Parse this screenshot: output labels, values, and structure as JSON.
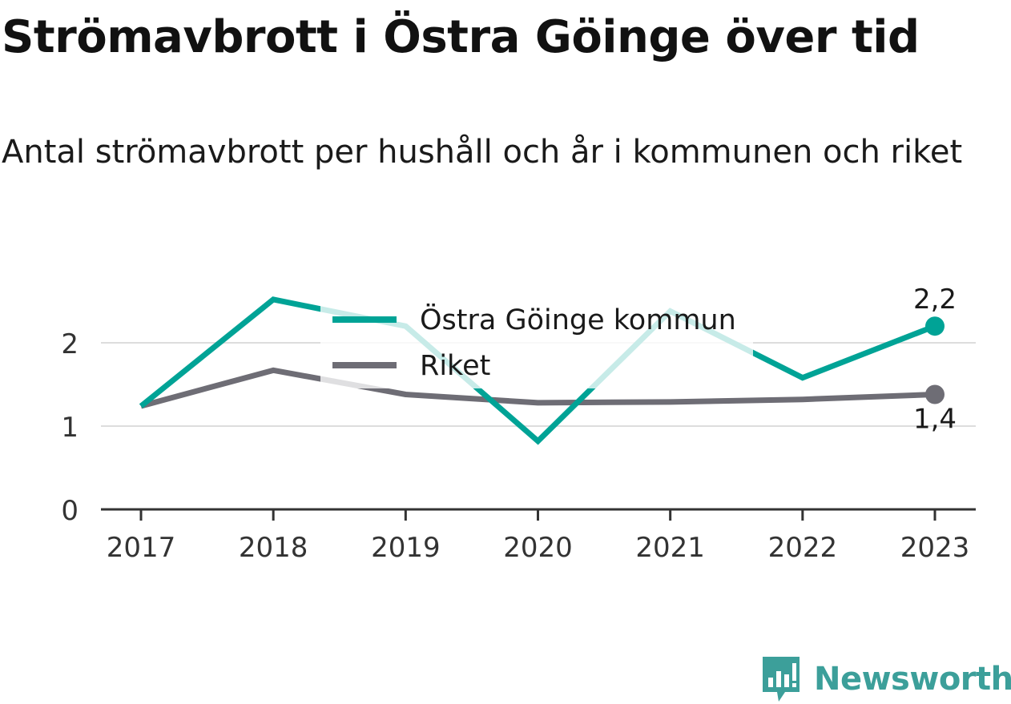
{
  "title": "Strömavbrott i Östra Göinge över tid",
  "subtitle": "Antal strömavbrott per hushåll och år i kommunen och riket",
  "brand": "Newsworthy",
  "colors": {
    "east": "#00a396",
    "riket": "#6e6d75",
    "grid": "#dddddd",
    "axis": "#333333"
  },
  "chart_data": {
    "type": "line",
    "x": [
      "2017",
      "2018",
      "2019",
      "2020",
      "2021",
      "2022",
      "2023"
    ],
    "ylim": [
      0,
      2.6
    ],
    "yticks": [
      "0",
      "1",
      "2"
    ],
    "grid": true,
    "legend": "top-center",
    "series": [
      {
        "name": "Östra Göinge kommun",
        "values": [
          1.24,
          2.52,
          2.2,
          0.82,
          2.38,
          1.58,
          2.2
        ],
        "end_label": "2,2"
      },
      {
        "name": "Riket",
        "values": [
          1.24,
          1.67,
          1.38,
          1.28,
          1.29,
          1.32,
          1.38
        ],
        "end_label": "1,4"
      }
    ]
  }
}
